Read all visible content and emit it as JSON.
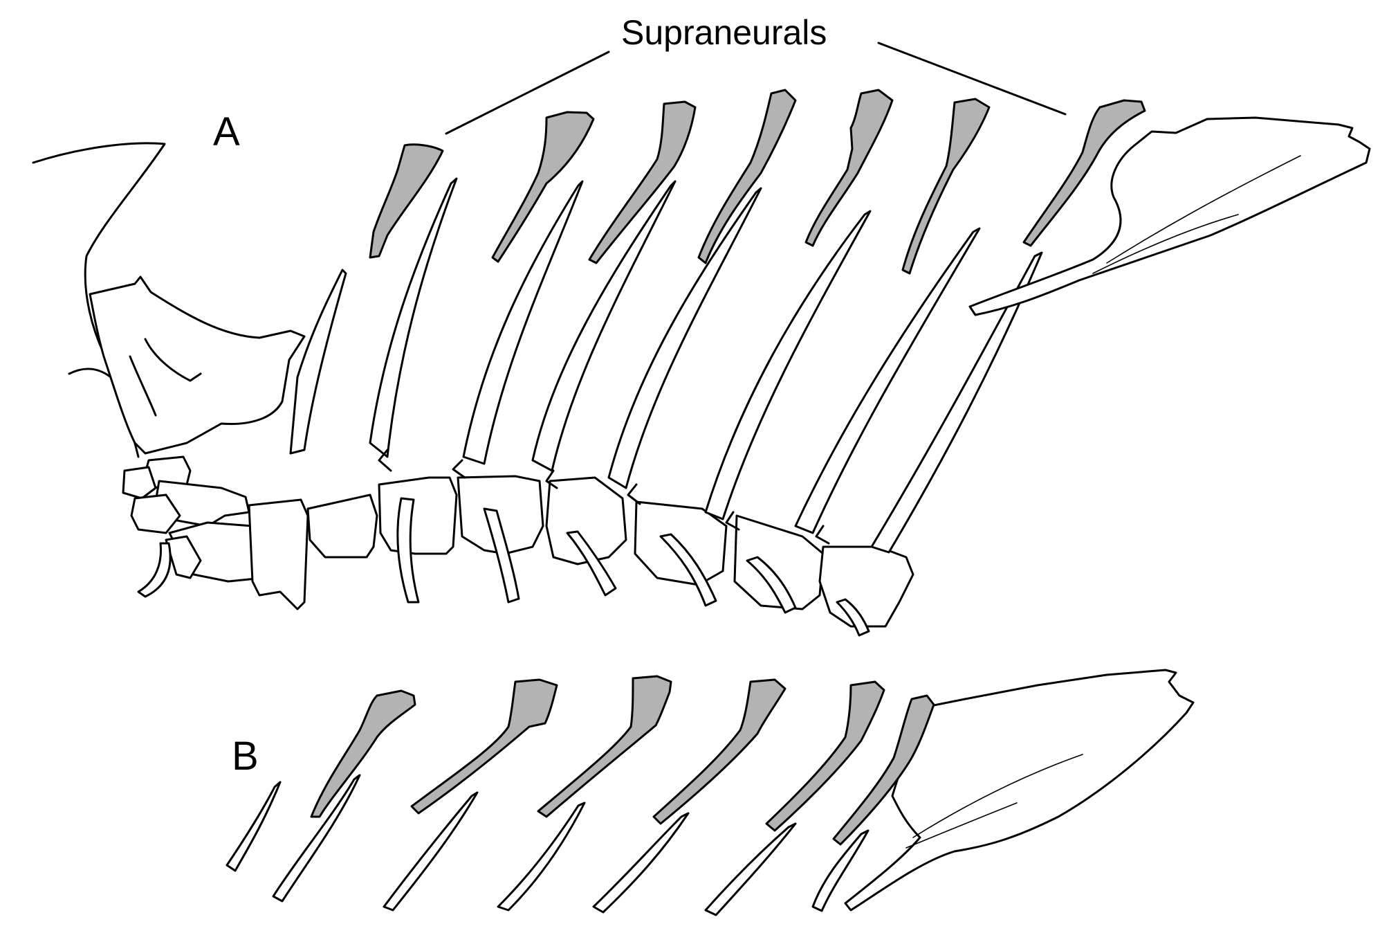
{
  "figure": {
    "title": "Supraneurals",
    "panels": [
      {
        "label": "A"
      },
      {
        "label": "B"
      }
    ]
  },
  "colors": {
    "supraneural_fill": "#b3b3b3",
    "outline": "#000000",
    "background": "#ffffff"
  }
}
